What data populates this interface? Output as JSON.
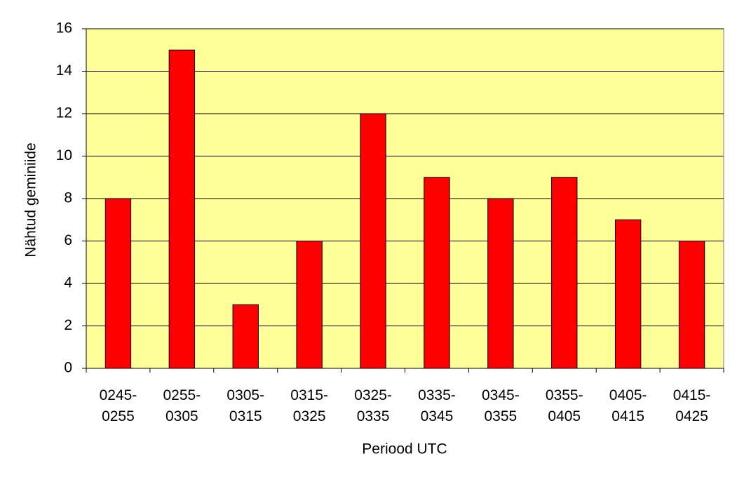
{
  "chart_data": {
    "type": "bar",
    "x_label": "Periood UTC",
    "y_label": "Nähtud geminiide",
    "categories": [
      "0245-0255",
      "0255-0305",
      "0305-0315",
      "0315-0325",
      "0325-0335",
      "0335-0345",
      "0345-0355",
      "0355-0405",
      "0405-0415",
      "0415-0425"
    ],
    "values": [
      8,
      15,
      3,
      6,
      12,
      9,
      8,
      9,
      7,
      6
    ],
    "color": "#ff0000",
    "background": "#ffff99",
    "ylim": [
      0,
      16
    ],
    "yticks": [
      0,
      2,
      4,
      6,
      8,
      10,
      12,
      14,
      16
    ],
    "grid": true
  }
}
